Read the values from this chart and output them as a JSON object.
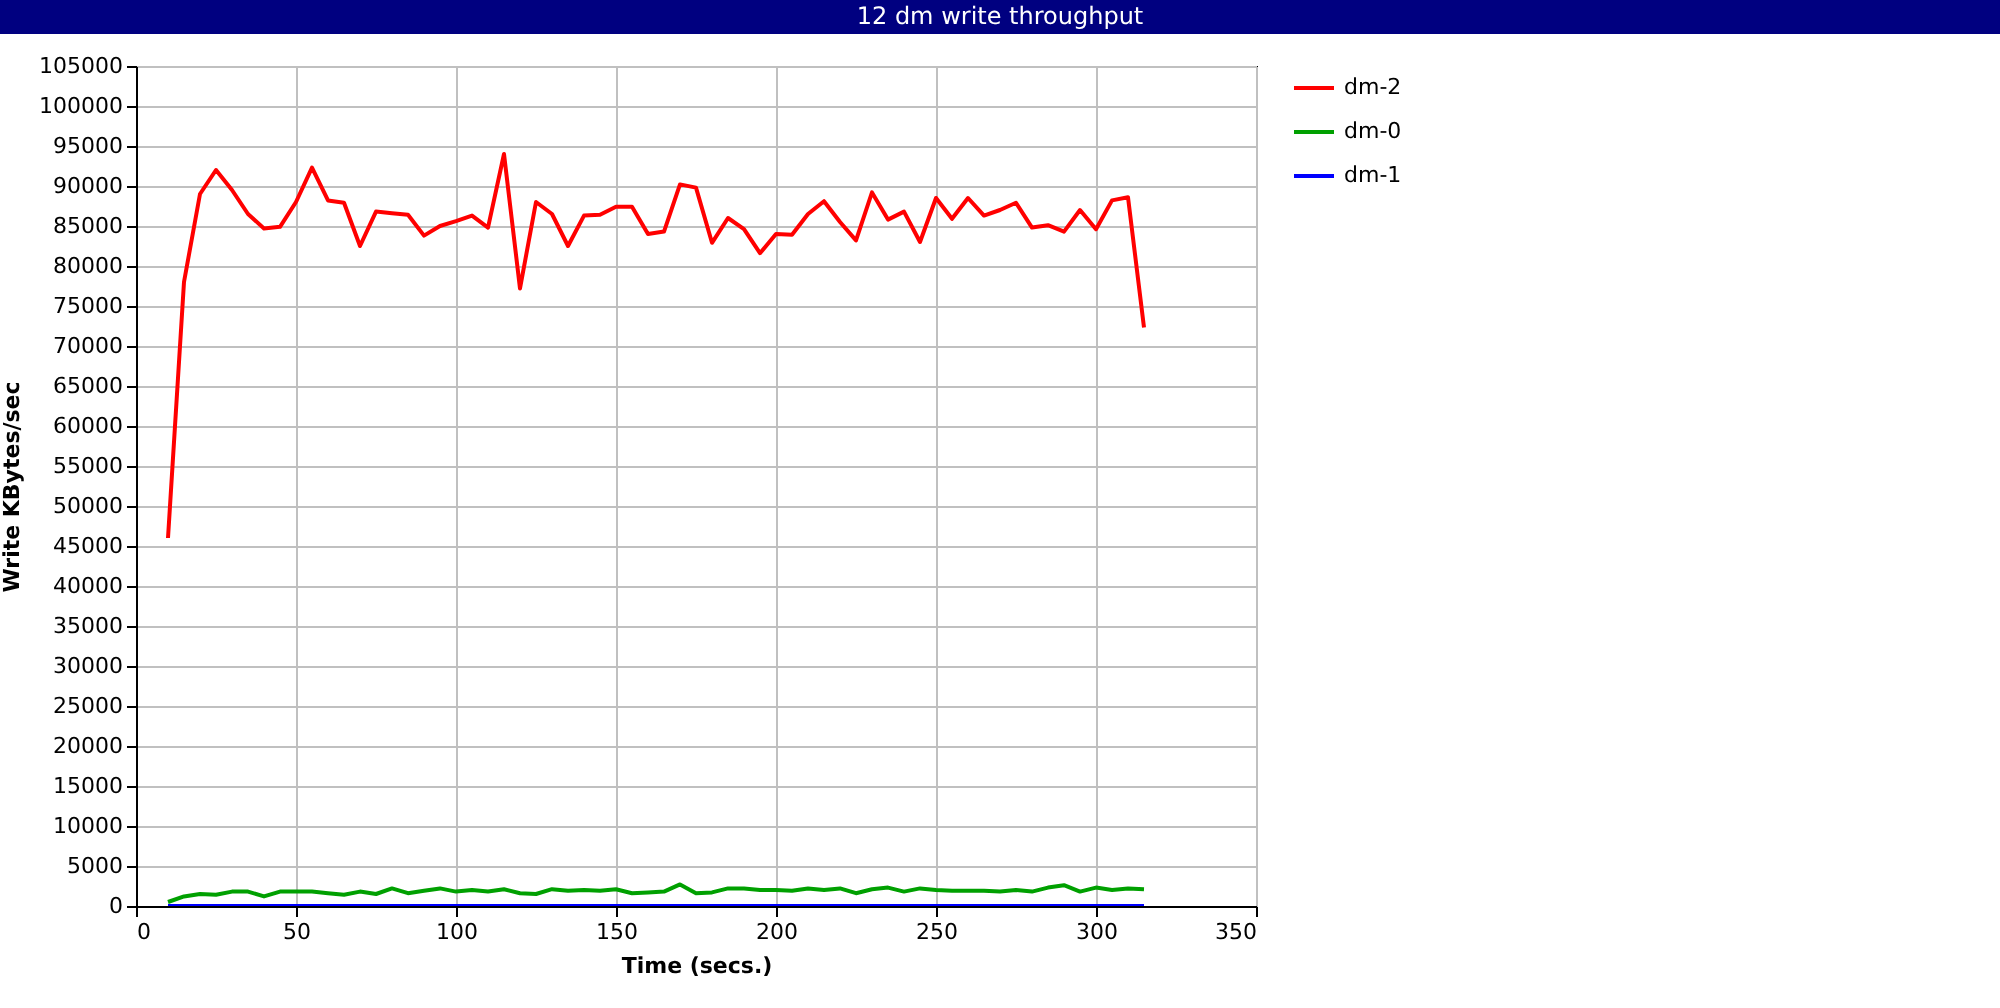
{
  "chart_data": {
    "type": "line",
    "title": "12 dm write throughput",
    "xlabel": "Time (secs.)",
    "ylabel": "Write KBytes/sec",
    "x": [
      10,
      15,
      20,
      25,
      30,
      35,
      40,
      45,
      50,
      55,
      60,
      65,
      70,
      75,
      80,
      85,
      90,
      95,
      100,
      105,
      110,
      115,
      120,
      125,
      130,
      135,
      140,
      145,
      150,
      155,
      160,
      165,
      170,
      175,
      180,
      185,
      190,
      195,
      200,
      205,
      210,
      215,
      220,
      225,
      230,
      235,
      240,
      245,
      250,
      255,
      260,
      265,
      270,
      275,
      280,
      285,
      290,
      295,
      300,
      305,
      310,
      315
    ],
    "series": [
      {
        "name": "dm-2",
        "color": "#ff0000",
        "values": [
          46000,
          78000,
          89000,
          92000,
          89500,
          86500,
          84700,
          84900,
          88000,
          92300,
          88200,
          87900,
          82500,
          86800,
          86600,
          86400,
          83800,
          85000,
          85600,
          86300,
          84800,
          94000,
          77200,
          88000,
          86500,
          82500,
          86300,
          86400,
          87400,
          87400,
          84000,
          84300,
          90200,
          89800,
          82900,
          86000,
          84600,
          81600,
          84000,
          83900,
          86500,
          88100,
          85500,
          83200,
          89200,
          85800,
          86800,
          83000,
          88500,
          85900,
          88500,
          86300,
          87000,
          87900,
          84800,
          85100,
          84300,
          87000,
          84600,
          88200,
          88600,
          72300
        ]
      },
      {
        "name": "dm-0",
        "color": "#00a000",
        "values": [
          500,
          1200,
          1500,
          1400,
          1800,
          1800,
          1200,
          1800,
          1800,
          1800,
          1600,
          1400,
          1800,
          1500,
          2200,
          1600,
          1900,
          2200,
          1800,
          2000,
          1800,
          2100,
          1600,
          1500,
          2100,
          1900,
          2000,
          1900,
          2100,
          1600,
          1700,
          1800,
          2700,
          1600,
          1700,
          2200,
          2200,
          2000,
          2000,
          1900,
          2200,
          2000,
          2200,
          1600,
          2100,
          2300,
          1800,
          2200,
          2000,
          1900,
          1900,
          1900,
          1800,
          2000,
          1800,
          2300,
          2600,
          1800,
          2300,
          2000,
          2200,
          2100
        ]
      },
      {
        "name": "dm-1",
        "color": "#0000ff",
        "values": [
          0,
          0,
          0,
          0,
          0,
          0,
          0,
          0,
          0,
          0,
          0,
          0,
          0,
          0,
          0,
          0,
          0,
          0,
          0,
          0,
          0,
          0,
          0,
          0,
          0,
          0,
          0,
          0,
          0,
          0,
          0,
          0,
          0,
          0,
          0,
          0,
          0,
          0,
          0,
          0,
          0,
          0,
          0,
          0,
          0,
          0,
          0,
          0,
          0,
          0,
          0,
          0,
          0,
          0,
          0,
          0,
          0,
          0,
          0,
          0,
          0,
          0
        ]
      }
    ],
    "xlim": [
      0,
      350
    ],
    "xticks": [
      0,
      50,
      100,
      150,
      200,
      250,
      300,
      350
    ],
    "ylim": [
      0,
      105000
    ],
    "yticks": [
      0,
      5000,
      10000,
      15000,
      20000,
      25000,
      30000,
      35000,
      40000,
      45000,
      50000,
      55000,
      60000,
      65000,
      70000,
      75000,
      80000,
      85000,
      90000,
      95000,
      100000,
      105000
    ],
    "grid": true,
    "legend": "right",
    "marker": "none",
    "line_style": "solid"
  }
}
